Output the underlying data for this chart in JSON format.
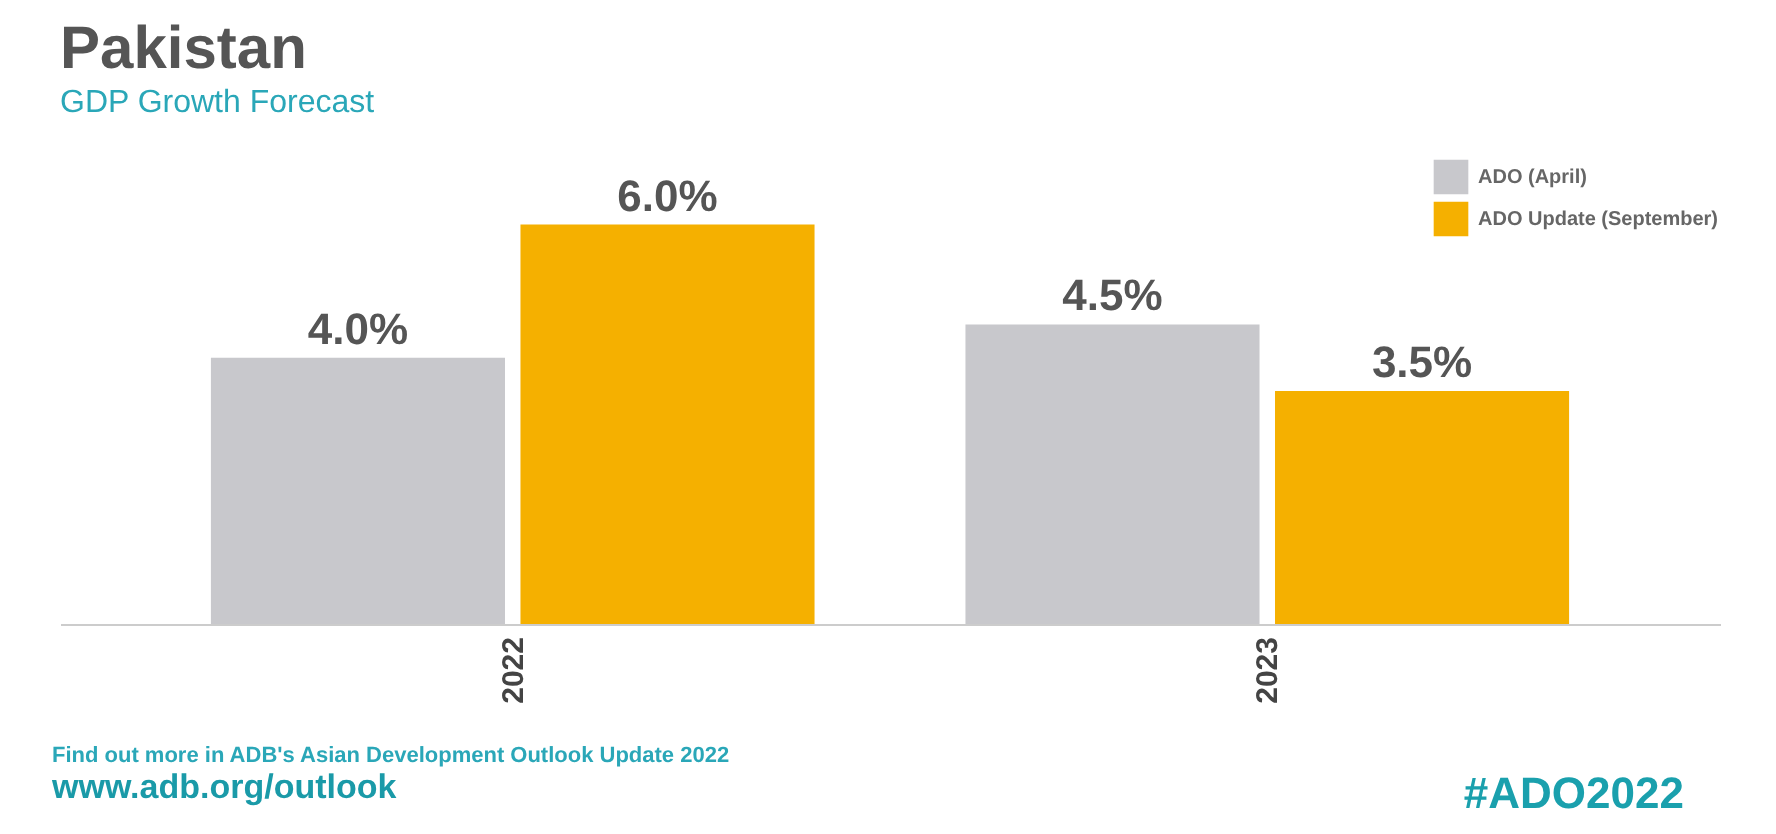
{
  "chart_data": {
    "type": "bar",
    "title": "Pakistan",
    "subtitle": "GDP Growth Forecast",
    "categories": [
      "2022",
      "2023"
    ],
    "series": [
      {
        "name": "ADO (April)",
        "color": "#c8c8cc",
        "values": [
          4.0,
          4.5
        ],
        "value_labels": [
          "4.0%",
          "4.5%"
        ]
      },
      {
        "name": "ADO Update (September)",
        "color": "#f5b000",
        "values": [
          6.0,
          3.5
        ],
        "value_labels": [
          "6.0%",
          "3.5%"
        ]
      }
    ],
    "ylim": [
      0,
      7
    ],
    "tick_labels": "x",
    "legend": "top right",
    "annotations": [
      "Find out more in ADB's Asian Development Outlook Update 2022",
      "www.adb.org/outlook",
      "#ADO2022"
    ]
  }
}
